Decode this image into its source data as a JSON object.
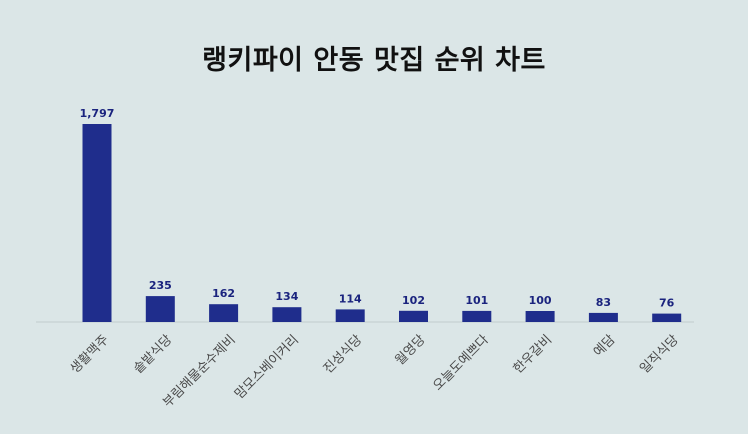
{
  "chart_data": {
    "type": "bar",
    "title": "랭키파이 안동 맛집 순위 차트",
    "categories": [
      "생활맥주",
      "솥밭식당",
      "부림해물순수제비",
      "맘모스베이커리",
      "진성식당",
      "월영당",
      "오늘도예쁘다",
      "한우갈비",
      "예담",
      "일직식당"
    ],
    "values": [
      1797,
      235,
      162,
      134,
      114,
      102,
      101,
      100,
      83,
      76
    ],
    "value_labels": [
      "1,797",
      "235",
      "162",
      "134",
      "114",
      "102",
      "101",
      "100",
      "83",
      "76"
    ],
    "ylim": [
      0,
      1797
    ],
    "bar_color": "#1f2d8c",
    "label_color": "#1a237e",
    "background": "#dbe6e7",
    "grid": false,
    "legend": "none"
  }
}
